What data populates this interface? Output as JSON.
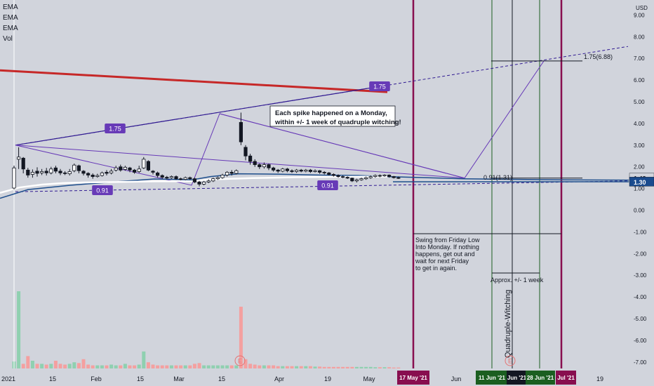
{
  "legend": {
    "ema1": "EMA",
    "ema2": "EMA",
    "ema3": "EMA",
    "vol": "Vol"
  },
  "currency": "USD",
  "annotations": {
    "spike_note_line1": "Each spike happened on a Monday,",
    "spike_note_line2": "within +/- 1 week of quadruple witching!",
    "swing_note": [
      "Swing from Friday Low",
      "Into Monday.  If nothing",
      "happens, get out and",
      "wait for next Friday",
      "to get in again."
    ],
    "approx_note": "Approx. +/- 1 week",
    "witching_note": "Quadruple-Witching",
    "fib_label_upper": "1.75",
    "fib_label_left": "1.75",
    "fib_target_label": "1.75(6.88)",
    "fib_base_label": "0.91(1.31)",
    "fib_low_left": "0.91",
    "fib_low_right": "0.91",
    "earnings_marker": "E"
  },
  "colors": {
    "background": "#d1d4dc",
    "red_trendline": "#c62828",
    "channel": "#311b92",
    "fib_purple": "#673ab7",
    "ema_white": "#ffffff",
    "ema_blue": "#1e4e8c",
    "vertical_maroon": "#880e4f",
    "vertical_green": "#1b5e20",
    "vol_up": "#8fd0b0",
    "vol_down": "#f4a0a0",
    "price_badge_gray": "#d1d4dc",
    "price_badge_blue": "#1a4b8e"
  },
  "chart_data": {
    "type": "candlestick",
    "y_axis": {
      "ticks": [
        9,
        8,
        7,
        6,
        5,
        4,
        3,
        2,
        1,
        0,
        -1,
        -2,
        -3,
        -4,
        -5,
        -6,
        -7
      ],
      "tick_labels": [
        "9.00",
        "8.00",
        "7.00",
        "6.00",
        "5.00",
        "4.00",
        "3.00",
        "2.00",
        "1.00",
        "0.00",
        "-1.00",
        "-2.00",
        "-3.00",
        "-4.00",
        "-5.00",
        "-6.00",
        "-7.00"
      ]
    },
    "x_axis": {
      "tick_labels": [
        "2021",
        "15",
        "Feb",
        "15",
        "Mar",
        "15",
        "Apr",
        "19",
        "May",
        "Jun",
        "19"
      ],
      "highlight_labels": [
        "17 May '21",
        "11 Jun '21",
        "Jun '21",
        "28 Jun '21",
        "Jul '21"
      ]
    },
    "price_labels": [
      {
        "value": 1.48,
        "text": "1.48"
      },
      {
        "value": 1.3,
        "text": "1.30"
      }
    ],
    "candles": [
      [
        1.02,
        1.95,
        0.96,
        2.05
      ],
      [
        2.35,
        2.45,
        2.9,
        1.9
      ],
      [
        2.4,
        1.9,
        2.45,
        1.7
      ],
      [
        1.85,
        1.62,
        1.95,
        1.5
      ],
      [
        1.65,
        1.75,
        1.88,
        1.5
      ],
      [
        1.8,
        1.7,
        1.98,
        1.55
      ],
      [
        1.72,
        1.78,
        1.9,
        1.62
      ],
      [
        1.8,
        1.72,
        1.95,
        1.6
      ],
      [
        1.72,
        1.9,
        2.0,
        1.65
      ],
      [
        1.95,
        1.8,
        2.05,
        1.7
      ],
      [
        1.8,
        1.72,
        1.9,
        1.62
      ],
      [
        1.72,
        1.7,
        1.8,
        1.62
      ],
      [
        1.68,
        1.78,
        1.9,
        1.6
      ],
      [
        1.82,
        2.08,
        2.15,
        1.75
      ],
      [
        2.05,
        1.82,
        2.1,
        1.7
      ],
      [
        1.8,
        1.7,
        1.85,
        1.6
      ],
      [
        1.7,
        1.62,
        1.75,
        1.5
      ],
      [
        1.62,
        1.55,
        1.7,
        1.45
      ],
      [
        1.55,
        1.6,
        1.68,
        1.5
      ],
      [
        1.6,
        1.72,
        1.78,
        1.55
      ],
      [
        1.75,
        1.7,
        1.85,
        1.6
      ],
      [
        1.72,
        1.8,
        1.9,
        1.65
      ],
      [
        1.85,
        1.95,
        2.05,
        1.78
      ],
      [
        2.0,
        1.85,
        2.1,
        1.78
      ],
      [
        1.88,
        1.98,
        2.05,
        1.82
      ],
      [
        1.95,
        1.85,
        2.0,
        1.75
      ],
      [
        1.85,
        1.75,
        1.9,
        1.68
      ],
      [
        1.78,
        1.9,
        2.05,
        1.72
      ],
      [
        1.95,
        2.35,
        2.45,
        1.9
      ],
      [
        2.25,
        1.85,
        2.3,
        1.8
      ],
      [
        1.8,
        1.75,
        1.85,
        1.65
      ],
      [
        1.72,
        1.6,
        1.78,
        1.5
      ],
      [
        1.6,
        1.52,
        1.65,
        1.45
      ],
      [
        1.52,
        1.48,
        1.58,
        1.42
      ],
      [
        1.5,
        1.55,
        1.6,
        1.45
      ],
      [
        1.55,
        1.45,
        1.6,
        1.4
      ],
      [
        1.45,
        1.42,
        1.5,
        1.38
      ],
      [
        1.42,
        1.5,
        1.55,
        1.38
      ],
      [
        1.5,
        1.45,
        1.55,
        1.4
      ],
      [
        1.45,
        1.3,
        1.5,
        1.25
      ],
      [
        1.3,
        1.2,
        1.35,
        1.1
      ],
      [
        1.2,
        1.3,
        1.35,
        1.15
      ],
      [
        1.3,
        1.35,
        1.42,
        1.25
      ],
      [
        1.35,
        1.45,
        1.5,
        1.3
      ],
      [
        1.45,
        1.5,
        1.55,
        1.4
      ],
      [
        1.5,
        1.62,
        1.68,
        1.45
      ],
      [
        1.62,
        1.75,
        1.8,
        1.55
      ],
      [
        1.75,
        1.7,
        1.85,
        1.6
      ],
      [
        1.7,
        1.82,
        1.88,
        1.65
      ],
      [
        4.05,
        3.15,
        4.5,
        3.0
      ],
      [
        2.9,
        2.5,
        3.0,
        2.3
      ],
      [
        2.5,
        2.25,
        2.6,
        2.1
      ],
      [
        2.25,
        2.1,
        2.35,
        2.0
      ],
      [
        2.1,
        2.0,
        2.15,
        1.9
      ],
      [
        2.0,
        2.1,
        2.2,
        1.92
      ],
      [
        2.1,
        1.95,
        2.15,
        1.85
      ],
      [
        1.95,
        1.85,
        2.0,
        1.78
      ],
      [
        1.85,
        1.8,
        1.9,
        1.72
      ],
      [
        1.8,
        1.9,
        1.95,
        1.75
      ],
      [
        1.9,
        1.82,
        1.95,
        1.75
      ],
      [
        1.82,
        1.78,
        1.88,
        1.72
      ],
      [
        1.78,
        1.85,
        1.9,
        1.72
      ],
      [
        1.85,
        1.8,
        1.9,
        1.75
      ],
      [
        1.8,
        1.85,
        1.9,
        1.75
      ],
      [
        1.85,
        1.78,
        1.9,
        1.72
      ],
      [
        1.78,
        1.82,
        1.88,
        1.74
      ],
      [
        1.82,
        1.75,
        1.85,
        1.68
      ],
      [
        1.75,
        1.72,
        1.8,
        1.65
      ],
      [
        1.72,
        1.65,
        1.76,
        1.6
      ],
      [
        1.65,
        1.6,
        1.7,
        1.55
      ],
      [
        1.6,
        1.55,
        1.65,
        1.5
      ],
      [
        1.55,
        1.52,
        1.6,
        1.48
      ],
      [
        1.52,
        1.48,
        1.56,
        1.44
      ],
      [
        1.48,
        1.35,
        1.5,
        1.3
      ],
      [
        1.35,
        1.4,
        1.45,
        1.28
      ],
      [
        1.4,
        1.45,
        1.5,
        1.36
      ],
      [
        1.45,
        1.5,
        1.55,
        1.4
      ],
      [
        1.5,
        1.55,
        1.6,
        1.45
      ],
      [
        1.55,
        1.6,
        1.65,
        1.5
      ],
      [
        1.6,
        1.58,
        1.65,
        1.52
      ],
      [
        1.58,
        1.62,
        1.66,
        1.54
      ],
      [
        1.62,
        1.55,
        1.65,
        1.5
      ],
      [
        1.55,
        1.5,
        1.58,
        1.46
      ],
      [
        1.5,
        1.48,
        1.55,
        1.44
      ]
    ],
    "volume": [
      0.45,
      5.0,
      0.3,
      0.8,
      0.5,
      0.3,
      0.3,
      0.25,
      0.3,
      0.5,
      0.3,
      0.25,
      0.3,
      0.4,
      0.35,
      0.6,
      0.25,
      0.2,
      0.2,
      0.2,
      0.2,
      0.25,
      0.2,
      0.2,
      0.3,
      0.2,
      0.2,
      0.25,
      1.1,
      0.4,
      0.25,
      0.2,
      0.2,
      0.2,
      0.2,
      0.2,
      0.2,
      0.2,
      0.2,
      0.3,
      0.35,
      0.2,
      0.2,
      0.2,
      0.2,
      0.2,
      0.2,
      0.2,
      0.2,
      4.0,
      0.6,
      0.3,
      0.25,
      0.2,
      0.2,
      0.2,
      0.2,
      0.15,
      0.15,
      0.15,
      0.15,
      0.15,
      0.15,
      0.15,
      0.15,
      0.12,
      0.12,
      0.1,
      0.1,
      0.1,
      0.1,
      0.1,
      0.1,
      0.1,
      0.1,
      0.1,
      0.1,
      0.1,
      0.08,
      0.08,
      0.08,
      0.08,
      0.06,
      0.06
    ],
    "ema_white": [
      [
        0,
        0.8
      ],
      [
        28,
        1.05
      ],
      [
        60,
        1.18
      ],
      [
        90,
        1.25
      ],
      [
        120,
        1.28
      ],
      [
        162,
        1.3
      ],
      [
        220,
        1.33
      ],
      [
        274,
        1.34
      ],
      [
        300,
        1.42
      ],
      [
        360,
        1.48
      ],
      [
        420,
        1.52
      ],
      [
        480,
        1.54
      ],
      [
        552,
        1.55
      ]
    ],
    "ema_blue": [
      [
        0,
        0.55
      ],
      [
        40,
        0.95
      ],
      [
        100,
        1.15
      ],
      [
        160,
        1.3
      ],
      [
        220,
        1.44
      ],
      [
        274,
        1.4
      ],
      [
        300,
        1.55
      ],
      [
        340,
        1.68
      ],
      [
        400,
        1.66
      ],
      [
        460,
        1.62
      ],
      [
        510,
        1.6
      ],
      [
        552,
        1.55
      ],
      [
        660,
        1.45
      ],
      [
        800,
        1.4
      ],
      [
        930,
        1.38
      ]
    ],
    "ema_blue_flat": [
      [
        560,
        1.31
      ],
      [
        930,
        1.31
      ]
    ],
    "red_trendline": [
      [
        0,
        6.45
      ],
      [
        552,
        5.45
      ]
    ],
    "channel_upper": [
      [
        22,
        3.0
      ],
      [
        895,
        7.55
      ]
    ],
    "channel_lower": [
      [
        22,
        0.85
      ],
      [
        895,
        1.35
      ]
    ],
    "spike_rays": [
      [
        [
          22,
          3.0
        ],
        [
          662,
          1.48
        ]
      ],
      [
        [
          313,
          4.45
        ],
        [
          662,
          1.48
        ]
      ]
    ],
    "fib_tool": [
      [
        22,
        3.0
      ],
      [
        273,
        1.15
      ],
      [
        313,
        4.45
      ],
      [
        662,
        1.48
      ],
      [
        775,
        6.88
      ]
    ],
    "fib_levels": [
      {
        "value": 6.88,
        "x1": 700,
        "x2": 830
      },
      {
        "value": 1.48,
        "x1": 700,
        "x2": 830
      },
      {
        "value": 1.31,
        "x1": 560,
        "x2": 932
      }
    ],
    "vertical_lines": [
      {
        "x": 589,
        "color": "maroon"
      },
      {
        "x": 800,
        "color": "maroon"
      },
      {
        "x": 701,
        "color": "green"
      },
      {
        "x": 769,
        "color": "green"
      },
      {
        "x": 730,
        "color": "black"
      }
    ]
  }
}
